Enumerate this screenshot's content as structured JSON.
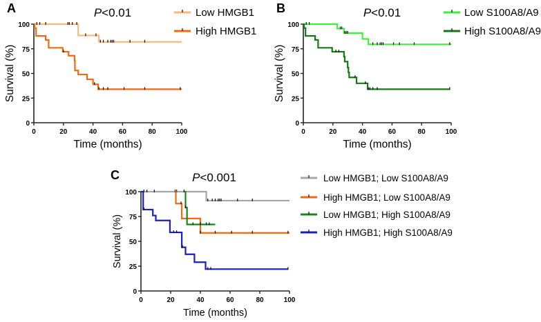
{
  "chart_data": [
    {
      "type": "line",
      "panel": "A",
      "title": "P<0.01",
      "title_p": "P",
      "title_rest": "<0.01",
      "xlabel": "Time (months)",
      "ylabel": "Survival (%)",
      "xlim": [
        0,
        100
      ],
      "ylim": [
        0,
        100
      ],
      "xticks": [
        0,
        20,
        40,
        60,
        80,
        100
      ],
      "yticks": [
        0,
        25,
        50,
        75,
        100
      ],
      "legend_placement": "top-right",
      "series": [
        {
          "name": "Low HMGB1",
          "color": "#f9b77a",
          "steps": [
            [
              0,
              100
            ],
            [
              30,
              88.5
            ],
            [
              44,
              82
            ],
            [
              100,
              82
            ]
          ],
          "censors": [
            2,
            4,
            8,
            23,
            24,
            26,
            29,
            35,
            42,
            45,
            47,
            50,
            52,
            53,
            54,
            65,
            75
          ]
        },
        {
          "name": "High HMGB1",
          "color": "#f26a10",
          "steps": [
            [
              0,
              100
            ],
            [
              0.5,
              96
            ],
            [
              1.5,
              88
            ],
            [
              8,
              84
            ],
            [
              10,
              76
            ],
            [
              19.5,
              72
            ],
            [
              23.5,
              68
            ],
            [
              27.5,
              63
            ],
            [
              27.8,
              53
            ],
            [
              30,
              49
            ],
            [
              36,
              44
            ],
            [
              40,
              39
            ],
            [
              43.5,
              34
            ],
            [
              100,
              34
            ]
          ],
          "censors": [
            20,
            41,
            44,
            47,
            50,
            61,
            75,
            99
          ]
        }
      ]
    },
    {
      "type": "line",
      "panel": "B",
      "title": "P<0.01",
      "title_p": "P",
      "title_rest": "<0.01",
      "xlabel": "Time (months)",
      "ylabel": "Survival (%)",
      "xlim": [
        0,
        100
      ],
      "ylim": [
        0,
        100
      ],
      "xticks": [
        0,
        20,
        40,
        60,
        80,
        100
      ],
      "yticks": [
        0,
        25,
        50,
        75,
        100
      ],
      "legend_placement": "top-right",
      "series": [
        {
          "name": "Low S100A8/A9",
          "color": "#3cf03c",
          "steps": [
            [
              0,
              100
            ],
            [
              23,
              95.5
            ],
            [
              27.5,
              91
            ],
            [
              40,
              85
            ],
            [
              44,
              79.5
            ],
            [
              100,
              79.5
            ]
          ],
          "censors": [
            2,
            4,
            25,
            26,
            28,
            29,
            30,
            47,
            50,
            52,
            53,
            54,
            61,
            65,
            75,
            99
          ]
        },
        {
          "name": "High S100A8/A9",
          "color": "#137a13",
          "steps": [
            [
              0,
              100
            ],
            [
              0.5,
              96
            ],
            [
              1.5,
              88
            ],
            [
              8,
              84
            ],
            [
              10,
              76
            ],
            [
              19.5,
              72
            ],
            [
              27.5,
              67
            ],
            [
              28,
              62
            ],
            [
              30,
              56
            ],
            [
              30.5,
              51
            ],
            [
              31,
              46
            ],
            [
              36,
              40
            ],
            [
              43.5,
              34
            ],
            [
              99,
              34
            ]
          ],
          "censors": [
            22,
            24,
            35,
            42,
            44,
            45,
            47,
            50,
            99
          ]
        }
      ]
    },
    {
      "type": "line",
      "panel": "C",
      "title": "P<0.001",
      "title_p": "P",
      "title_rest": "<0.001",
      "xlabel": "Time (months)",
      "ylabel": "Survival (%)",
      "xlim": [
        0,
        100
      ],
      "ylim": [
        0,
        100
      ],
      "xticks": [
        0,
        20,
        40,
        60,
        80,
        100
      ],
      "yticks": [
        0,
        25,
        50,
        75,
        100
      ],
      "legend_placement": "right",
      "series": [
        {
          "name": "Low HMGB1; Low S100A8/A9",
          "color": "#a6a6a6",
          "steps": [
            [
              0,
              100
            ],
            [
              44,
              91
            ],
            [
              100,
              91
            ]
          ],
          "censors": [
            2,
            4,
            9,
            23,
            24,
            29,
            45,
            48,
            50,
            52,
            53,
            54,
            65,
            75
          ]
        },
        {
          "name": "High HMGB1; Low S100A8/A9",
          "color": "#f26a10",
          "steps": [
            [
              23,
              100
            ],
            [
              23.5,
              88
            ],
            [
              27.5,
              73
            ],
            [
              40,
              58.5
            ],
            [
              100,
              58.5
            ]
          ],
          "censors": [
            27,
            40,
            50,
            61,
            75,
            99
          ]
        },
        {
          "name": "Low HMGB1; High S100A8/A9",
          "color": "#138a13",
          "steps": [
            [
              29.5,
              100
            ],
            [
              30,
              84
            ],
            [
              31,
              67
            ],
            [
              50,
              67
            ]
          ],
          "censors": [
            30,
            35,
            40,
            44,
            46
          ]
        },
        {
          "name": "High HMGB1; High S100A8/A9",
          "color": "#1a1fc0",
          "steps": [
            [
              0,
              100
            ],
            [
              1.5,
              82
            ],
            [
              8,
              76
            ],
            [
              10,
              71
            ],
            [
              19.5,
              59
            ],
            [
              27.5,
              44
            ],
            [
              30,
              37
            ],
            [
              36,
              29
            ],
            [
              43.5,
              22
            ],
            [
              99,
              22
            ]
          ],
          "censors": [
            2,
            22,
            24,
            28,
            45,
            47,
            99
          ]
        }
      ]
    }
  ]
}
